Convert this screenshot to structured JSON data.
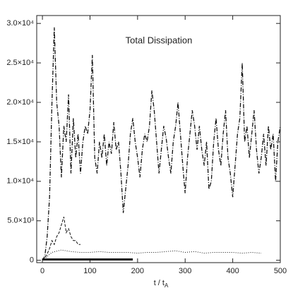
{
  "chart_data": {
    "type": "line",
    "title": "Total Dissipation",
    "x_label": "t / t",
    "x_label_sub": "A",
    "xlim": [
      -12,
      500
    ],
    "ylim": [
      -300,
      31000
    ],
    "xticks": [
      0,
      100,
      200,
      300,
      400,
      500
    ],
    "yticks": [
      {
        "value": 0,
        "label": "0"
      },
      {
        "value": 5000,
        "label": "5.0×10³"
      },
      {
        "value": 10000,
        "label": "1.0×10⁴"
      },
      {
        "value": 15000,
        "label": "1.5×10⁴"
      },
      {
        "value": 20000,
        "label": "2.0×10⁴"
      },
      {
        "value": 25000,
        "label": "2.5×10⁴"
      },
      {
        "value": 30000,
        "label": "3.0×10⁴"
      }
    ],
    "series": [
      {
        "color": "#111111",
        "dash": "6,2,1,2",
        "width": 1.3,
        "x": [
          0,
          5,
          10,
          15,
          20,
          25,
          30,
          35,
          40,
          45,
          50,
          55,
          60,
          65,
          70,
          75,
          80,
          85,
          90,
          95,
          100,
          105,
          110,
          115,
          120,
          125,
          130,
          135,
          140,
          145,
          150,
          155,
          160,
          165,
          170,
          175,
          180,
          185,
          190,
          195,
          200,
          205,
          210,
          215,
          220,
          225,
          230,
          235,
          240,
          245,
          250,
          255,
          260,
          265,
          270,
          275,
          280,
          285,
          290,
          295,
          300,
          305,
          310,
          315,
          320,
          325,
          330,
          335,
          340,
          345,
          350,
          355,
          360,
          365,
          370,
          375,
          380,
          385,
          390,
          395,
          400,
          405,
          410,
          415,
          420,
          425,
          430,
          435,
          440,
          445,
          450,
          455,
          460,
          465,
          470,
          475,
          480,
          485,
          490,
          495,
          500
        ],
        "values": [
          0,
          500,
          3000,
          8000,
          20000,
          29500,
          20000,
          17000,
          10500,
          17000,
          15000,
          21000,
          11000,
          18000,
          13000,
          16000,
          11000,
          15000,
          17000,
          16000,
          19000,
          26000,
          13000,
          11000,
          15000,
          13000,
          16000,
          12000,
          15000,
          13500,
          17500,
          14000,
          15000,
          11000,
          6000,
          9000,
          12000,
          16000,
          18000,
          15000,
          13000,
          10500,
          14000,
          16000,
          15000,
          17000,
          21500,
          19000,
          15000,
          11000,
          14000,
          17000,
          15500,
          13000,
          11000,
          15000,
          17000,
          20000,
          16000,
          12000,
          8500,
          13000,
          16000,
          19000,
          17000,
          14000,
          17000,
          14000,
          12000,
          15000,
          9000,
          10000,
          15000,
          18000,
          14000,
          12000,
          16000,
          19000,
          13000,
          11000,
          8000,
          12000,
          16000,
          18000,
          25000,
          15000,
          17000,
          13000,
          16000,
          19000,
          14000,
          11000,
          13000,
          16000,
          12000,
          17000,
          14000,
          16000,
          10000,
          15000,
          17000
        ]
      },
      {
        "color": "#111111",
        "dash": "4,2",
        "width": 1,
        "x": [
          0,
          5,
          10,
          15,
          20,
          25,
          30,
          35,
          40,
          45,
          50,
          55,
          60,
          65,
          70,
          75,
          80
        ],
        "values": [
          0,
          300,
          800,
          1500,
          2500,
          2000,
          3000,
          3500,
          4500,
          5500,
          3500,
          4000,
          3000,
          2500,
          2500,
          2000,
          2000
        ]
      },
      {
        "color": "#111111",
        "dash": "1,2",
        "width": 1,
        "x": [
          0,
          20,
          40,
          60,
          80,
          100,
          120,
          140,
          160,
          180,
          200,
          220,
          240,
          260,
          280,
          300,
          320,
          340,
          360,
          380,
          400,
          420,
          440,
          460
        ],
        "values": [
          0,
          1000,
          1300,
          1100,
          1000,
          1000,
          1100,
          1000,
          1000,
          1000,
          900,
          1000,
          1000,
          1100,
          1200,
          1000,
          1100,
          900,
          1000,
          1000,
          1000,
          900,
          1000,
          900
        ]
      },
      {
        "color": "#111111",
        "dash": "none",
        "width": 3,
        "x": [
          0,
          190
        ],
        "values": [
          100,
          100
        ]
      }
    ]
  }
}
